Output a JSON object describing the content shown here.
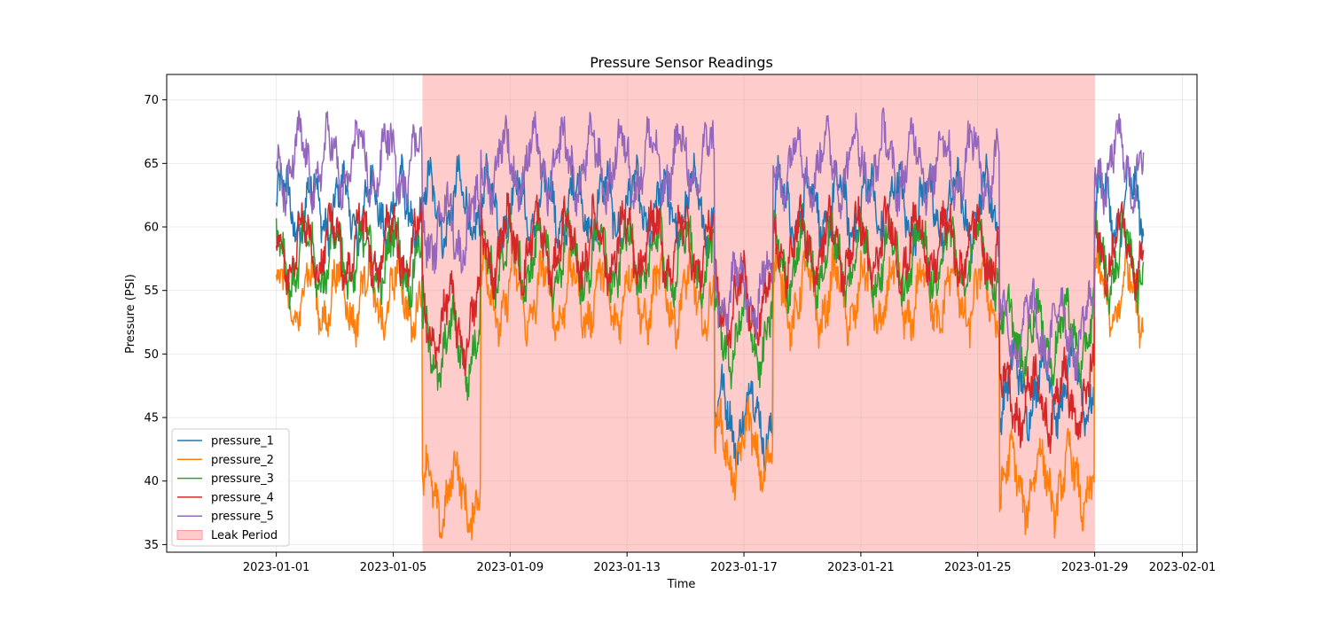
{
  "chart_data": {
    "type": "line",
    "title": "Pressure Sensor Readings",
    "xlabel": "Time",
    "ylabel": "Pressure (PSI)",
    "xlim": [
      "2022-12-28T06:00",
      "2023-02-01T12:00"
    ],
    "ylim": [
      34.4,
      72.0
    ],
    "grid": true,
    "legend_position": "lower-left",
    "x_ticks": [
      "2023-01-01",
      "2023-01-05",
      "2023-01-09",
      "2023-01-13",
      "2023-01-17",
      "2023-01-21",
      "2023-01-25",
      "2023-01-29",
      "2023-02-01"
    ],
    "y_ticks": [
      35,
      40,
      45,
      50,
      55,
      60,
      65,
      70
    ],
    "x_range_data": [
      "2023-01-01",
      "2023-01-30T16:00"
    ],
    "series": [
      {
        "name": "pressure_1",
        "color": "#1f77b4",
        "base": 61.5,
        "segments": [
          {
            "from": "2023-01-01",
            "to": "2023-01-16",
            "level": 61.5
          },
          {
            "from": "2023-01-16",
            "to": "2023-01-18",
            "level": 45.0
          },
          {
            "from": "2023-01-18",
            "to": "2023-01-25T18:00",
            "level": 61.5
          },
          {
            "from": "2023-01-25T18:00",
            "to": "2023-01-29",
            "level": 47.5
          },
          {
            "from": "2023-01-29",
            "to": "2023-01-30T16:00",
            "level": 61.5
          }
        ]
      },
      {
        "name": "pressure_2",
        "color": "#ff7f0e",
        "base": 54.5,
        "segments": [
          {
            "from": "2023-01-01",
            "to": "2023-01-06",
            "level": 54.5
          },
          {
            "from": "2023-01-06",
            "to": "2023-01-08",
            "level": 39.0
          },
          {
            "from": "2023-01-08",
            "to": "2023-01-16",
            "level": 54.5
          },
          {
            "from": "2023-01-16",
            "to": "2023-01-18",
            "level": 42.5
          },
          {
            "from": "2023-01-18",
            "to": "2023-01-25T18:00",
            "level": 54.5
          },
          {
            "from": "2023-01-25T18:00",
            "to": "2023-01-29",
            "level": 40.0
          },
          {
            "from": "2023-01-29",
            "to": "2023-01-30T16:00",
            "level": 54.5
          }
        ]
      },
      {
        "name": "pressure_3",
        "color": "#2ca02c",
        "base": 57.5,
        "segments": [
          {
            "from": "2023-01-01",
            "to": "2023-01-06",
            "level": 57.5
          },
          {
            "from": "2023-01-06",
            "to": "2023-01-08",
            "level": 50.5
          },
          {
            "from": "2023-01-08",
            "to": "2023-01-16",
            "level": 57.5
          },
          {
            "from": "2023-01-16",
            "to": "2023-01-18",
            "level": 51.5
          },
          {
            "from": "2023-01-18",
            "to": "2023-01-25T18:00",
            "level": 57.5
          },
          {
            "from": "2023-01-25T18:00",
            "to": "2023-01-29",
            "level": 51.5
          },
          {
            "from": "2023-01-29",
            "to": "2023-01-30T16:00",
            "level": 57.5
          }
        ]
      },
      {
        "name": "pressure_4",
        "color": "#d62728",
        "base": 58.5,
        "segments": [
          {
            "from": "2023-01-01",
            "to": "2023-01-06",
            "level": 58.5
          },
          {
            "from": "2023-01-06",
            "to": "2023-01-08",
            "level": 52.5
          },
          {
            "from": "2023-01-08",
            "to": "2023-01-16",
            "level": 58.5
          },
          {
            "from": "2023-01-16",
            "to": "2023-01-18",
            "level": 54.0
          },
          {
            "from": "2023-01-18",
            "to": "2023-01-25T18:00",
            "level": 58.5
          },
          {
            "from": "2023-01-25T18:00",
            "to": "2023-01-29",
            "level": 46.5
          },
          {
            "from": "2023-01-29",
            "to": "2023-01-30T16:00",
            "level": 58.5
          }
        ]
      },
      {
        "name": "pressure_5",
        "color": "#9467bd",
        "base": 65.0,
        "segments": [
          {
            "from": "2023-01-01",
            "to": "2023-01-06",
            "level": 65.0
          },
          {
            "from": "2023-01-06",
            "to": "2023-01-08",
            "level": 60.0
          },
          {
            "from": "2023-01-08",
            "to": "2023-01-16",
            "level": 65.0
          },
          {
            "from": "2023-01-16",
            "to": "2023-01-18",
            "level": 55.0
          },
          {
            "from": "2023-01-18",
            "to": "2023-01-25T18:00",
            "level": 65.0
          },
          {
            "from": "2023-01-25T18:00",
            "to": "2023-01-29",
            "level": 52.0
          },
          {
            "from": "2023-01-29",
            "to": "2023-01-30T16:00",
            "level": 65.0
          }
        ]
      }
    ],
    "shaded_regions": [
      {
        "name": "Leak Period",
        "from": "2023-01-06",
        "to": "2023-01-29",
        "color": "#ff9999"
      }
    ],
    "legend": [
      "pressure_1",
      "pressure_2",
      "pressure_3",
      "pressure_4",
      "pressure_5",
      "Leak Period"
    ]
  }
}
